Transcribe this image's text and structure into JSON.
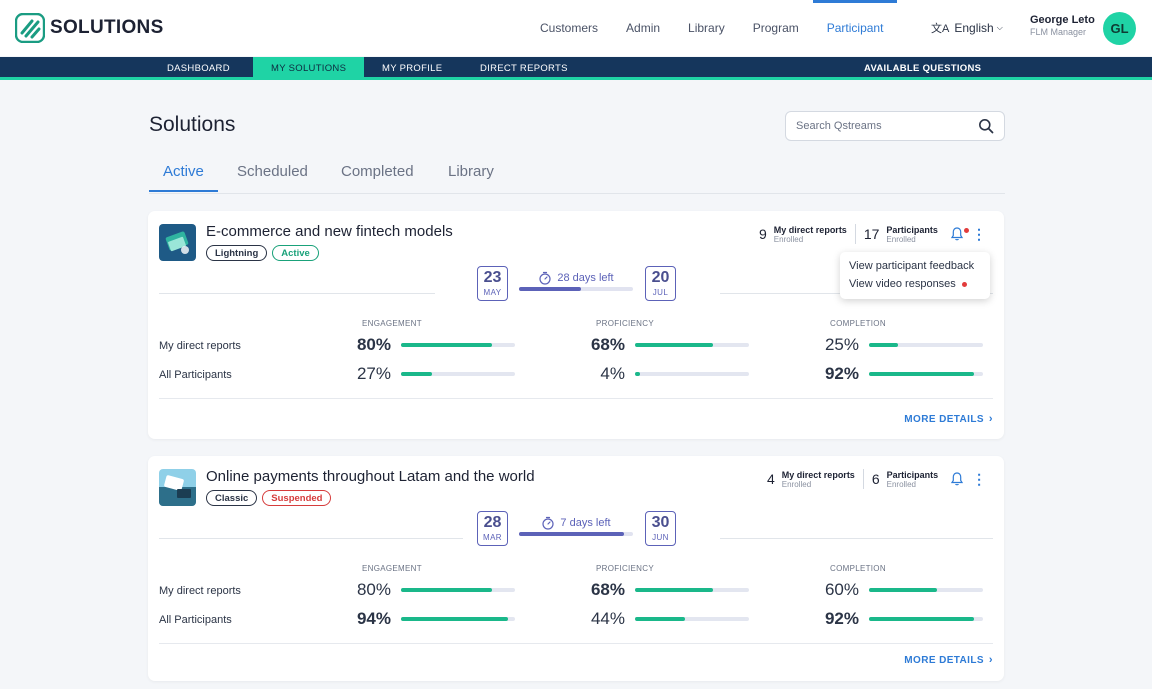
{
  "app": {
    "logo_text": "SOLUTIONS"
  },
  "topnav": [
    {
      "label": "Customers"
    },
    {
      "label": "Admin"
    },
    {
      "label": "Library"
    },
    {
      "label": "Program"
    },
    {
      "label": "Participant",
      "active": true
    }
  ],
  "language": {
    "label": "English"
  },
  "user": {
    "name": "George Leto",
    "role": "FLM Manager",
    "initials": "GL"
  },
  "subnav": [
    {
      "label": "DASHBOARD"
    },
    {
      "label": "MY SOLUTIONS",
      "active": true
    },
    {
      "label": "MY PROFILE"
    },
    {
      "label": "DIRECT REPORTS"
    }
  ],
  "subnav_right": "AVAILABLE QUESTIONS",
  "page": {
    "title": "Solutions"
  },
  "search": {
    "placeholder": "Search Qstreams"
  },
  "tabs": [
    {
      "label": "Active",
      "active": true
    },
    {
      "label": "Scheduled"
    },
    {
      "label": "Completed"
    },
    {
      "label": "Library"
    }
  ],
  "metric_headers": [
    "ENGAGEMENT",
    "PROFICIENCY",
    "COMPLETION"
  ],
  "row_labels": [
    "My direct reports",
    "All Participants"
  ],
  "more_label": "MORE DETAILS",
  "enrolled_label": "Enrolled",
  "direct_reports_label": "My direct reports",
  "participants_label": "Participants",
  "cards": [
    {
      "title": "E-commerce and new fintech models",
      "badges": [
        {
          "label": "Lightning",
          "kind": "neutral"
        },
        {
          "label": "Active",
          "kind": "green"
        }
      ],
      "direct_reports_count": "9",
      "participants_count": "17",
      "has_notification": true,
      "start": {
        "day": "23",
        "month": "MAY"
      },
      "end": {
        "day": "20",
        "month": "JUL"
      },
      "days_left": "28 days left",
      "time_progress": 0.54,
      "rows": [
        [
          {
            "pct": "80%",
            "value": 0.8,
            "bold": true
          },
          {
            "pct": "68%",
            "value": 0.68,
            "bold": true
          },
          {
            "pct": "25%",
            "value": 0.25,
            "bold": false
          }
        ],
        [
          {
            "pct": "27%",
            "value": 0.27,
            "bold": false
          },
          {
            "pct": "4%",
            "value": 0.04,
            "bold": false
          },
          {
            "pct": "92%",
            "value": 0.92,
            "bold": true
          }
        ]
      ],
      "menu": [
        {
          "label": "View participant feedback",
          "dot": false
        },
        {
          "label": "View video responses",
          "dot": true
        }
      ]
    },
    {
      "title": "Online payments throughout Latam and the world",
      "badges": [
        {
          "label": "Classic",
          "kind": "neutral"
        },
        {
          "label": "Suspended",
          "kind": "red"
        }
      ],
      "direct_reports_count": "4",
      "participants_count": "6",
      "has_notification": false,
      "start": {
        "day": "28",
        "month": "MAR"
      },
      "end": {
        "day": "30",
        "month": "JUN"
      },
      "days_left": "7 days left",
      "time_progress": 0.92,
      "rows": [
        [
          {
            "pct": "80%",
            "value": 0.8,
            "bold": false
          },
          {
            "pct": "68%",
            "value": 0.68,
            "bold": true
          },
          {
            "pct": "60%",
            "value": 0.6,
            "bold": false
          }
        ],
        [
          {
            "pct": "94%",
            "value": 0.94,
            "bold": true
          },
          {
            "pct": "44%",
            "value": 0.44,
            "bold": false
          },
          {
            "pct": "92%",
            "value": 0.92,
            "bold": true
          }
        ]
      ]
    }
  ],
  "colors": {
    "accent": "#2e7bd6",
    "brand": "#1fd3a5",
    "navy": "#15365c",
    "timeline": "#5c62b8",
    "bar": "#1ab88a",
    "alert": "#e23c3c"
  }
}
